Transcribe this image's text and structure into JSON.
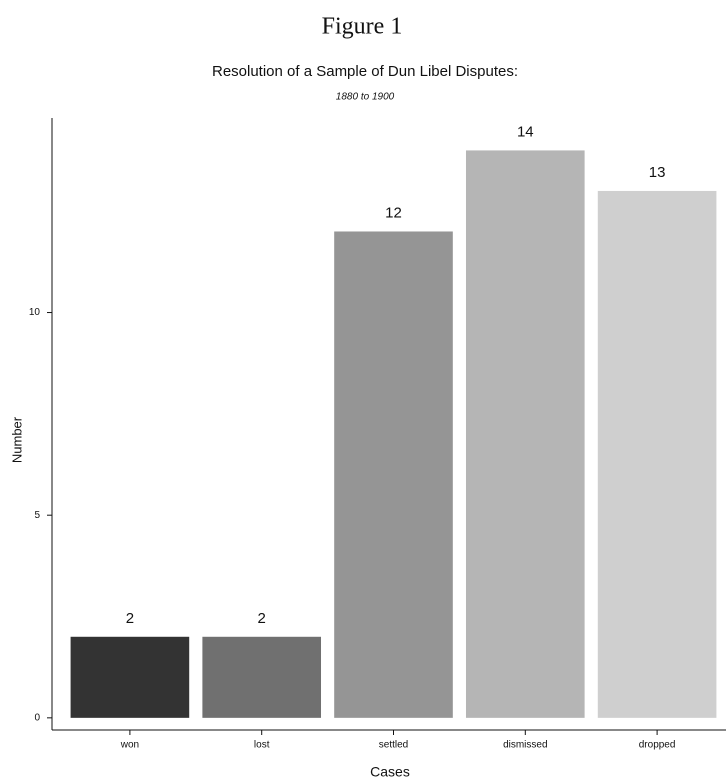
{
  "chart_data": {
    "type": "bar",
    "figure_label": "Figure 1",
    "title": "Resolution of a Sample of Dun Libel Disputes:",
    "subtitle": "1880 to 1900",
    "x_label": "Cases",
    "y_label": "Number",
    "categories": [
      "won",
      "lost",
      "settled",
      "dismissed",
      "dropped"
    ],
    "values": [
      2,
      2,
      12,
      14,
      13
    ],
    "colors": [
      "#333333",
      "#707070",
      "#959595",
      "#b5b5b5",
      "#cfcfcf"
    ],
    "ylim": [
      -0.3,
      14.8
    ],
    "yticks": [
      0,
      5,
      10
    ],
    "grid": false
  }
}
